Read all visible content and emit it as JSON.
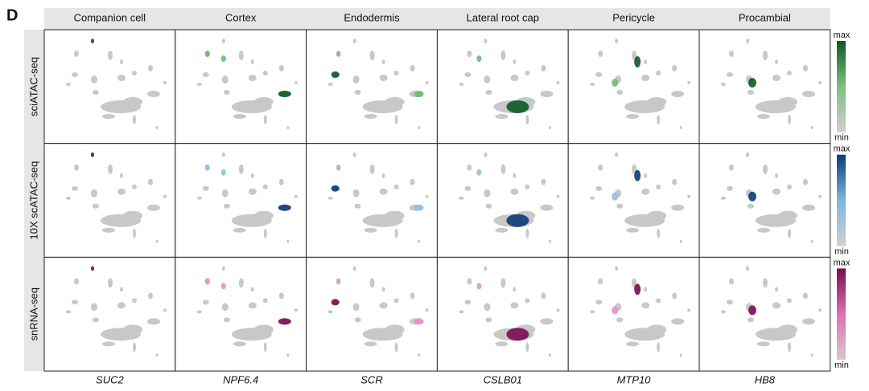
{
  "panel_label": "D",
  "columns": [
    "Companion cell",
    "Cortex",
    "Endodermis",
    "Lateral root cap",
    "Pericycle",
    "Procambial"
  ],
  "rows": [
    "sciATAC-seq",
    "10X scATAC-seq",
    "snRNA-seq"
  ],
  "genes": [
    "SUC2",
    "NPF6.4",
    "SCR",
    "CSLB01",
    "MTP10",
    "HB8"
  ],
  "legend": [
    {
      "max": "max",
      "min": "min"
    },
    {
      "max": "max",
      "min": "min"
    },
    {
      "max": "max",
      "min": "min"
    }
  ]
}
